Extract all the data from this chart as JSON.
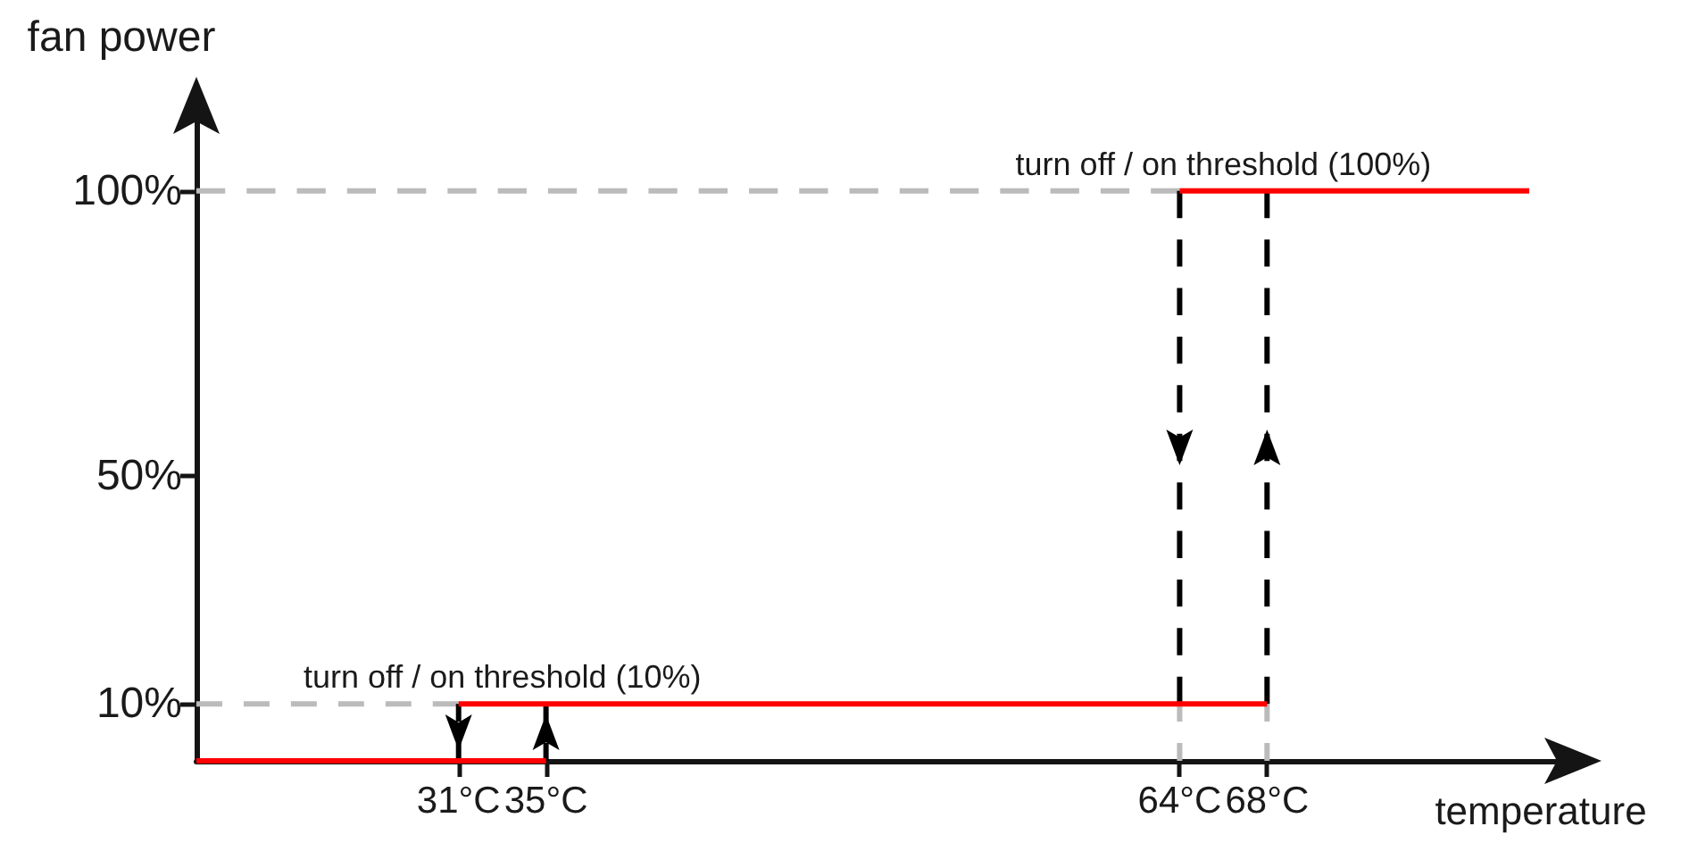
{
  "chart_data": {
    "type": "line",
    "xlabel": "temperature",
    "ylabel": "fan power",
    "xlim": [
      19,
      82
    ],
    "xticks": [
      {
        "value": 31,
        "label": "31°C"
      },
      {
        "value": 35,
        "label": "35°C"
      },
      {
        "value": 64,
        "label": "64°C"
      },
      {
        "value": 68,
        "label": "68°C"
      }
    ],
    "ylim": [
      0,
      115
    ],
    "yticks": [
      {
        "value": 10,
        "label": "10%"
      },
      {
        "value": 50,
        "label": "50%"
      },
      {
        "value": 100,
        "label": "100%"
      }
    ],
    "grid": false,
    "marker": "none",
    "line_style": "solid",
    "series": [
      {
        "color": "#bbbbbb",
        "line_style": "dashed",
        "x": [
          19,
          64
        ],
        "values": [
          100,
          100
        ]
      },
      {
        "color": "#bbbbbb",
        "line_style": "dashed",
        "x": [
          19,
          31
        ],
        "values": [
          10,
          10
        ]
      },
      {
        "color": "#bbbbbb",
        "line_style": "dashed",
        "x": [
          64,
          64
        ],
        "values": [
          10,
          0
        ]
      },
      {
        "color": "#bbbbbb",
        "line_style": "dashed",
        "x": [
          68,
          68
        ],
        "values": [
          10,
          0
        ]
      },
      {
        "color": "#000000",
        "line_style": "dashed",
        "x": [
          31,
          31
        ],
        "values": [
          10,
          0
        ]
      },
      {
        "color": "#000000",
        "line_style": "dashed",
        "x": [
          35,
          35
        ],
        "values": [
          0,
          10
        ]
      },
      {
        "color": "#000000",
        "line_style": "dashed",
        "x": [
          64,
          64
        ],
        "values": [
          100,
          10
        ]
      },
      {
        "color": "#000000",
        "line_style": "dashed",
        "x": [
          68,
          68
        ],
        "values": [
          10,
          100
        ]
      },
      {
        "color": "#ff0000",
        "x": [
          19,
          35
        ],
        "values": [
          0,
          0
        ]
      },
      {
        "color": "#ff0000",
        "x": [
          31,
          68
        ],
        "values": [
          10,
          10
        ]
      },
      {
        "color": "#ff0000",
        "x": [
          64,
          80
        ],
        "values": [
          100,
          100
        ]
      }
    ],
    "annotations": [
      {
        "text": "turn off / on threshold (100%)",
        "x": 66,
        "y": 100
      },
      {
        "text": "turn off / on threshold (10%)",
        "x": 33,
        "y": 10
      }
    ]
  }
}
